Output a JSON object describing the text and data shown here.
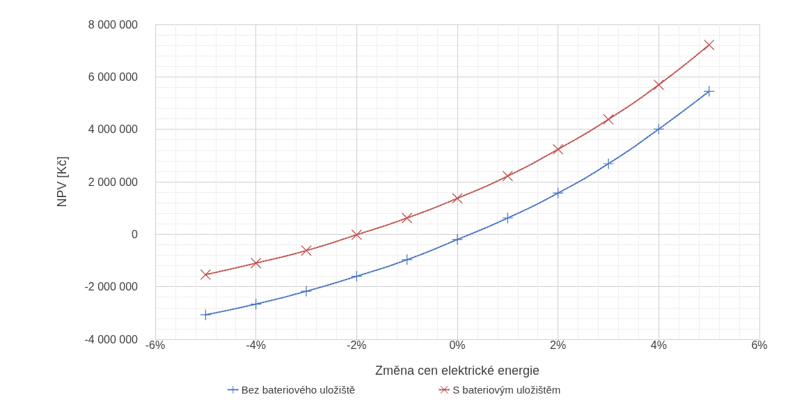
{
  "chart_data": {
    "type": "line",
    "xlabel": "Změna cen elektrické energie",
    "ylabel": "NPV [Kč]",
    "x": [
      -5,
      -4,
      -3,
      -2,
      -1,
      0,
      1,
      2,
      3,
      4,
      5
    ],
    "series": [
      {
        "name": "Bez bateriového uložiště",
        "color": "#4472c4",
        "marker": "plus",
        "values": [
          -3070000,
          -2660000,
          -2170000,
          -1600000,
          -970000,
          -200000,
          620000,
          1570000,
          2690000,
          4010000,
          5450000
        ]
      },
      {
        "name": "S bateriovým uložištěm",
        "color": "#c0504d",
        "marker": "cross",
        "values": [
          -1540000,
          -1100000,
          -620000,
          -20000,
          620000,
          1370000,
          2220000,
          3240000,
          4380000,
          5700000,
          7220000
        ]
      }
    ],
    "xlim": [
      -6,
      6
    ],
    "xticks": [
      {
        "value": -6,
        "label": "-6%"
      },
      {
        "value": -4,
        "label": "-4%"
      },
      {
        "value": -2,
        "label": "-2%"
      },
      {
        "value": 0,
        "label": "0%"
      },
      {
        "value": 2,
        "label": "2%"
      },
      {
        "value": 4,
        "label": "4%"
      },
      {
        "value": 6,
        "label": "6%"
      }
    ],
    "ylim": [
      -4000000,
      8000000
    ],
    "yticks": [
      {
        "value": -4000000,
        "label": "-4 000 000"
      },
      {
        "value": -2000000,
        "label": "-2 000 000"
      },
      {
        "value": 0,
        "label": "0"
      },
      {
        "value": 2000000,
        "label": "2 000 000"
      },
      {
        "value": 4000000,
        "label": "4 000 000"
      },
      {
        "value": 6000000,
        "label": "6 000 000"
      },
      {
        "value": 8000000,
        "label": "8 000 000"
      }
    ],
    "grid": true,
    "legend": "bottom",
    "line_style": "dotted"
  }
}
